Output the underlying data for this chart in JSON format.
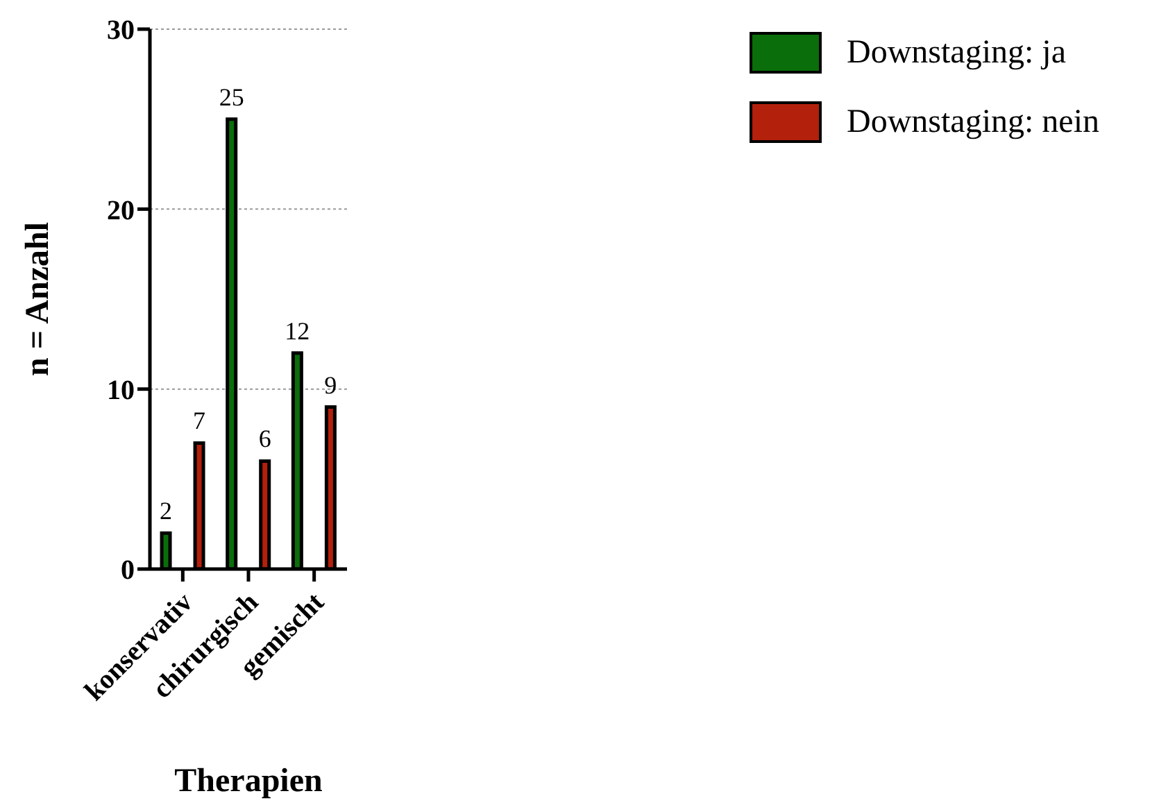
{
  "chart_data": {
    "type": "bar",
    "xlabel": "Therapien",
    "ylabel": "n = Anzahl",
    "categories": [
      "konservativ",
      "chirurgisch",
      "gemischt"
    ],
    "series": [
      {
        "name": "Downstaging: ja",
        "color": "#0a6e0a",
        "values": [
          2,
          25,
          12
        ]
      },
      {
        "name": "Downstaging: nein",
        "color": "#b3200c",
        "values": [
          7,
          6,
          9
        ]
      }
    ],
    "ylim": [
      0,
      30
    ],
    "yticks": [
      0,
      10,
      20,
      30
    ],
    "grid": "y",
    "legend": "top right",
    "data_labels": true
  }
}
